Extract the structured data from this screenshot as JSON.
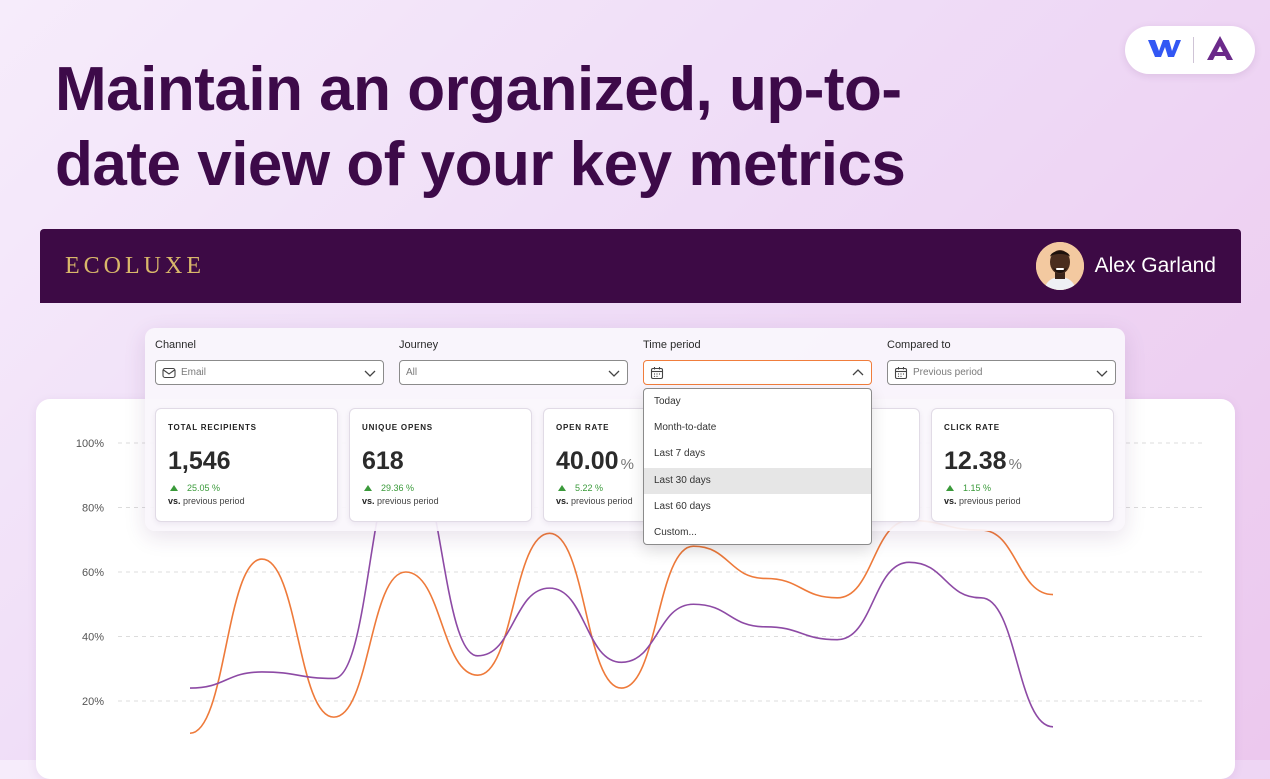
{
  "headline": "Maintain an organized, up-to-date view of your key metrics",
  "brand": {
    "name": "ECOLUXE",
    "color": "#d9b86a"
  },
  "header": {
    "background": "#3d0a45"
  },
  "user": {
    "name": "Alex Garland"
  },
  "partner_badge": {
    "icons": [
      "webflow-logo-icon",
      "partner-a-logo-icon"
    ]
  },
  "filters": [
    {
      "label": "Channel",
      "value": "Email",
      "icon": "mail-icon"
    },
    {
      "label": "Journey",
      "value": "All"
    },
    {
      "label": "Time period",
      "value": "",
      "icon": "calendar-icon",
      "open": true
    },
    {
      "label": "Compared to",
      "value": "Previous period",
      "icon": "calendar-icon"
    }
  ],
  "time_period_options": [
    "Today",
    "Month-to-date",
    "Last 7 days",
    "Last 30 days",
    "Last 60 days",
    "Custom..."
  ],
  "time_period_highlighted": "Last 30 days",
  "metrics": [
    {
      "title": "TOTAL RECIPIENTS",
      "value": "1,546",
      "unit": "",
      "delta": "25.05 %",
      "compare_prefix": "vs.",
      "compare": "previous period"
    },
    {
      "title": "UNIQUE OPENS",
      "value": "618",
      "unit": "",
      "delta": "29.36 %",
      "compare_prefix": "vs.",
      "compare": "previous period"
    },
    {
      "title": "OPEN RATE",
      "value": "40.00",
      "unit": "%",
      "delta": "5.22 %",
      "compare_prefix": "vs.",
      "compare": "previous period"
    },
    {
      "title": "CLICK RATE",
      "value": "12.38",
      "unit": "%",
      "delta": "1.15 %",
      "compare_prefix": "vs.",
      "compare": "previous period"
    }
  ],
  "colors": {
    "accent_orange": "#ee7a3a",
    "accent_purple": "#8d4aa5",
    "positive": "#3a9a3a"
  },
  "chart_data": {
    "type": "line",
    "y_tick_labels": [
      "100%",
      "80%",
      "60%",
      "40%",
      "20%"
    ],
    "ylim": [
      0,
      100
    ],
    "grid": true,
    "series": [
      {
        "color": "#ee7a3a",
        "x": [
          0,
          1,
          2,
          3,
          4,
          5,
          6,
          7,
          8,
          9,
          10,
          11,
          12
        ],
        "values": [
          10,
          64,
          15,
          60,
          28,
          72,
          24,
          68,
          58,
          52,
          76,
          73,
          53
        ]
      },
      {
        "color": "#8d4aa5",
        "x": [
          0,
          1,
          2,
          3,
          4,
          5,
          6,
          7,
          8,
          9,
          10,
          11,
          12
        ],
        "values": [
          24,
          29,
          27,
          98,
          34,
          55,
          32,
          50,
          43,
          39,
          63,
          52,
          12
        ]
      }
    ]
  }
}
